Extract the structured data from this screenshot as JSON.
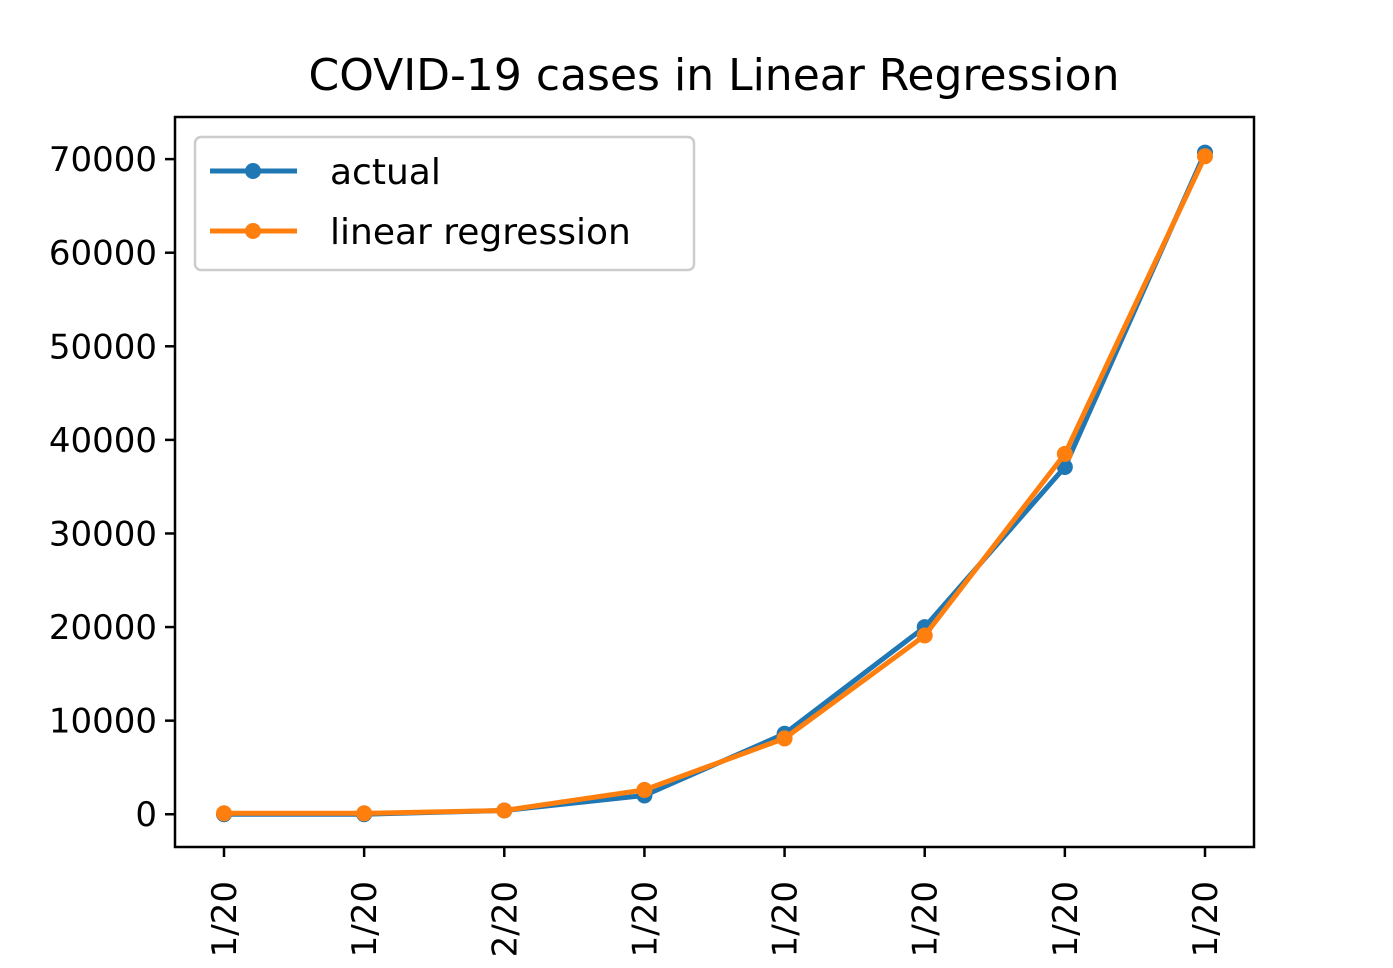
{
  "chart_data": {
    "type": "line",
    "title": "COVID-19 cases in Linear Regression",
    "xlabel": "",
    "ylabel": "",
    "categories": [
      "1/20",
      "1/20",
      "2/20",
      "1/20",
      "1/20",
      "1/20",
      "1/20",
      "1/20"
    ],
    "ylim": [
      -3500,
      74500
    ],
    "yticks": [
      0,
      10000,
      20000,
      30000,
      40000,
      50000,
      60000,
      70000
    ],
    "ytick_labels": [
      "0",
      "10000",
      "20000",
      "30000",
      "40000",
      "50000",
      "60000",
      "70000"
    ],
    "grid": false,
    "legend": "top-left",
    "series": [
      {
        "name": "actual",
        "color": "#1f77b4",
        "values": [
          0,
          0,
          400,
          2000,
          8600,
          20000,
          37100,
          70700
        ]
      },
      {
        "name": "linear regression",
        "color": "#ff7f0e",
        "values": [
          100,
          100,
          400,
          2600,
          8100,
          19100,
          38500,
          70300
        ]
      }
    ]
  }
}
